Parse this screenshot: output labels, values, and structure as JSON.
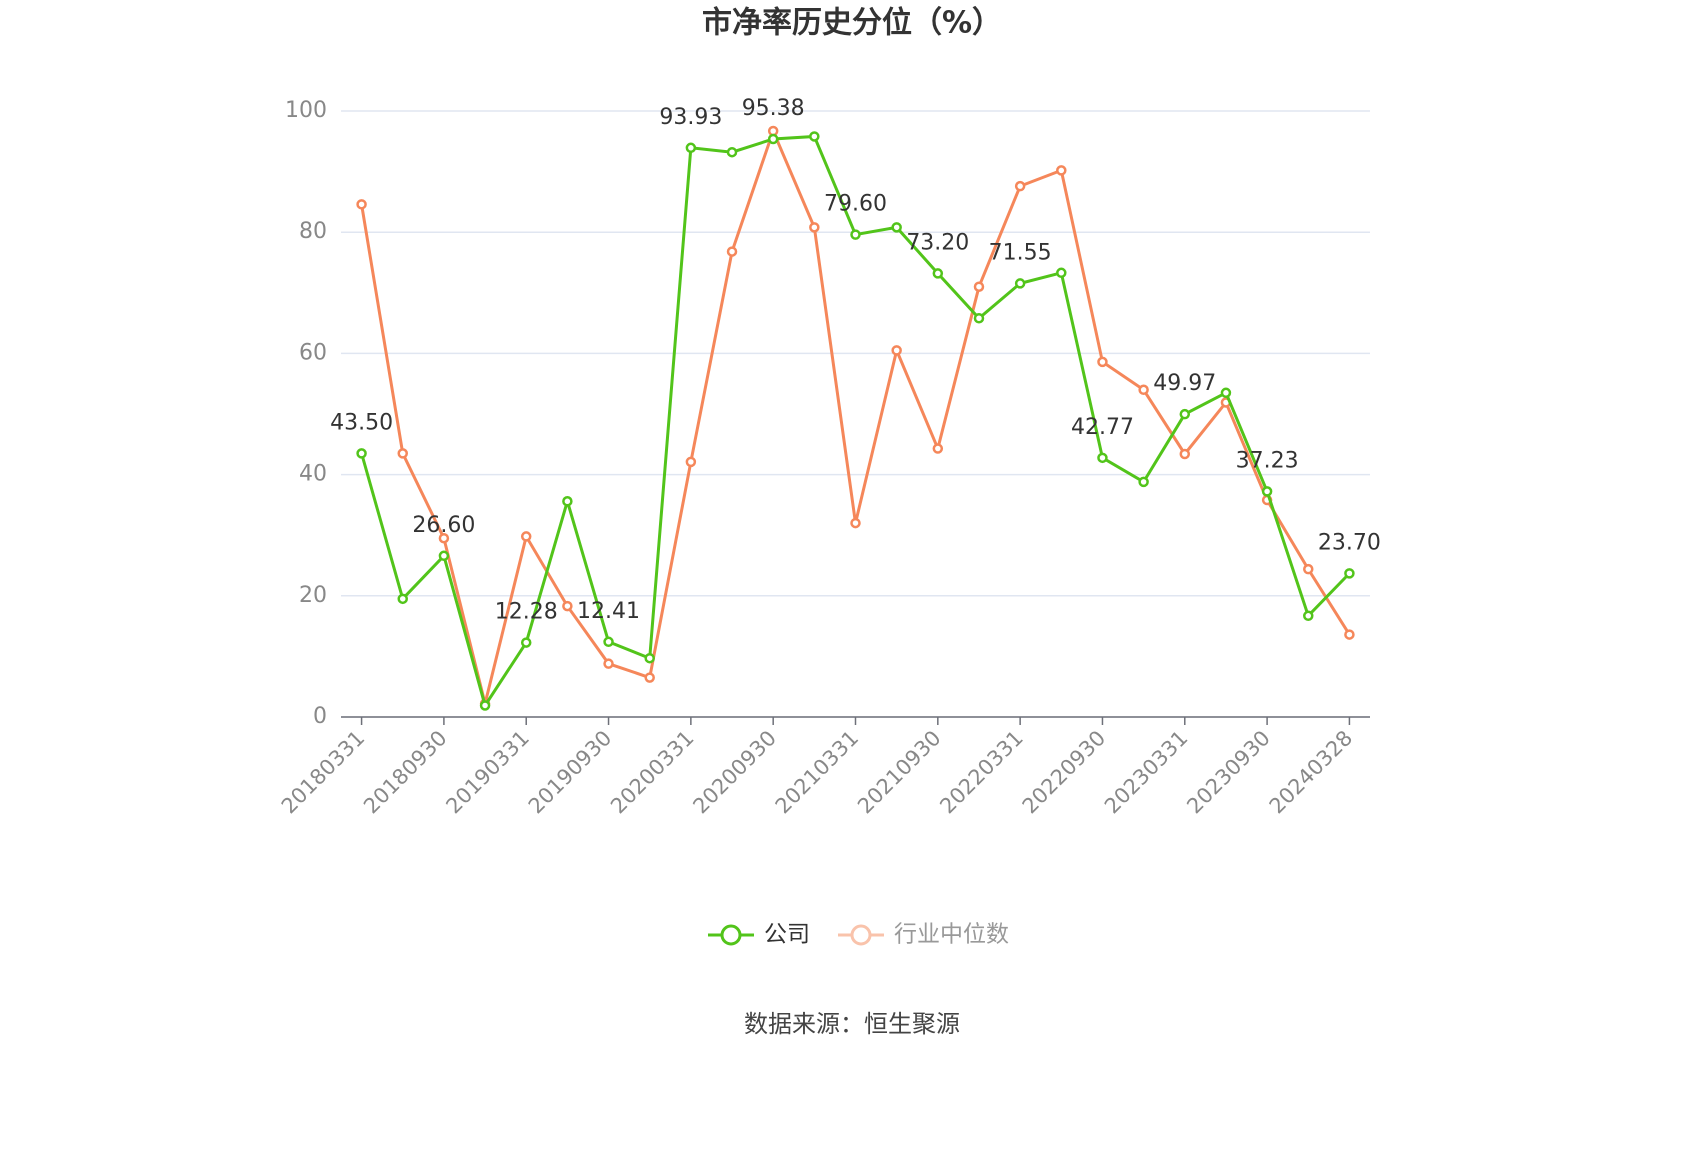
{
  "chart_data": {
    "type": "line",
    "title": "市净率历史分位（%）",
    "source": "数据来源：恒生聚源",
    "categories": [
      "20180331",
      null,
      "20180930",
      null,
      "20190331",
      null,
      "20190930",
      null,
      "20200331",
      null,
      "20200930",
      null,
      "20210331",
      null,
      "20210930",
      null,
      "20220331",
      null,
      "20220930",
      null,
      "20230331",
      null,
      "20230930",
      null,
      "20240328"
    ],
    "series": [
      {
        "name": "公司",
        "color": "#52c41a",
        "values": [
          43.5,
          19.5,
          26.6,
          1.9,
          12.28,
          35.6,
          12.41,
          9.7,
          93.93,
          93.2,
          95.38,
          95.8,
          79.6,
          80.8,
          73.2,
          65.8,
          71.55,
          73.3,
          42.77,
          38.8,
          49.97,
          53.5,
          37.23,
          16.7,
          23.7
        ],
        "value_labels": [
          "43.50",
          null,
          "26.60",
          null,
          "12.28",
          null,
          "12.41",
          null,
          "93.93",
          null,
          "95.38",
          null,
          "79.60",
          null,
          "73.20",
          null,
          "71.55",
          null,
          "42.77",
          null,
          "49.97",
          null,
          "37.23",
          null,
          "23.70"
        ]
      },
      {
        "name": "行业中位数",
        "color": "#f5875a",
        "values": [
          84.6,
          43.5,
          29.5,
          2.2,
          29.8,
          18.3,
          8.8,
          6.5,
          42.1,
          76.8,
          96.7,
          80.8,
          32.0,
          60.5,
          44.3,
          71.0,
          87.6,
          90.2,
          58.6,
          54.0,
          43.4,
          51.9,
          35.8,
          24.4,
          13.6
        ]
      }
    ],
    "ylim": [
      0,
      100
    ],
    "yticks": [
      0,
      20,
      40,
      60,
      80,
      100
    ],
    "grid": true
  }
}
